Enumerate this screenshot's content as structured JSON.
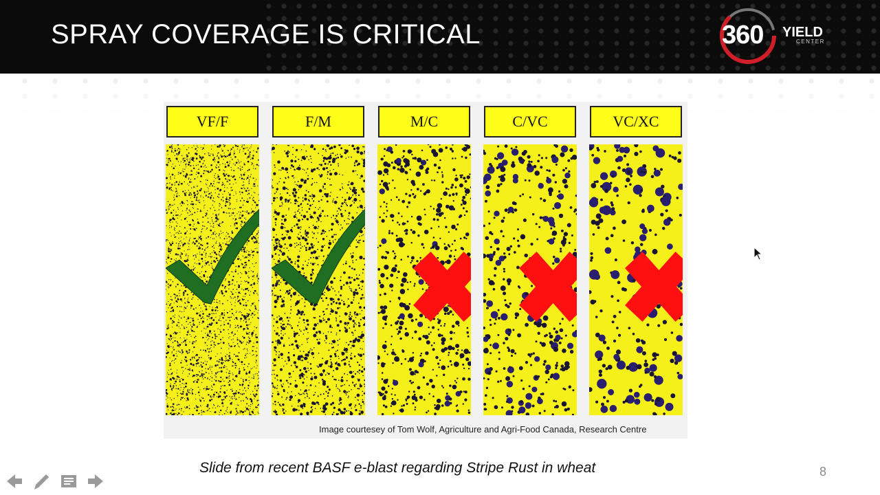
{
  "slide": {
    "title": "SPRAY COVERAGE IS CRITICAL",
    "subtitle": "Slide from recent BASF e-blast regarding Stripe Rust in wheat",
    "page_number": "8"
  },
  "logo": {
    "number": "360",
    "word": "YIELD",
    "sub": "CENTER",
    "accent": "#d11f2a"
  },
  "figure": {
    "columns": [
      {
        "label": "VF/F",
        "mark": "check"
      },
      {
        "label": "F/M",
        "mark": "check"
      },
      {
        "label": "M/C",
        "mark": "cross"
      },
      {
        "label": "C/VC",
        "mark": "cross"
      },
      {
        "label": "VC/XC",
        "mark": "cross"
      }
    ],
    "credit": "Image courtesey of Tom Wolf, Agriculture and Agri-Food Canada, Research Centre",
    "card_color": "#f5f01a",
    "check_color": "#1f6e22",
    "cross_color": "#ff1010"
  },
  "controls": {
    "icons": [
      "arrow-left-icon",
      "pen-icon",
      "notes-icon",
      "arrow-right-icon"
    ]
  }
}
